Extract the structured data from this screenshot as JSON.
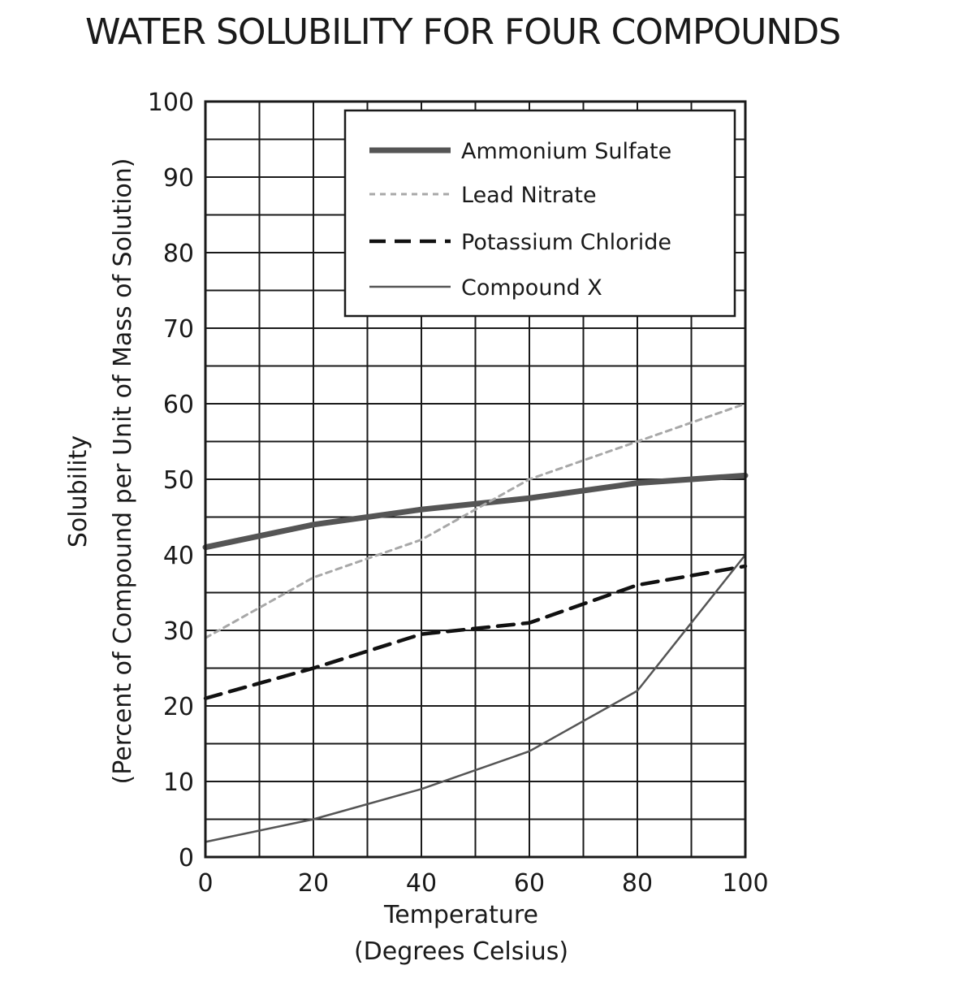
{
  "chart_data": {
    "type": "line",
    "title": "WATER SOLUBILITY FOR FOUR COMPOUNDS",
    "xlabel": [
      "Temperature",
      "(Degrees Celsius)"
    ],
    "ylabel": [
      "Solubility",
      "(Percent of Compound per Unit of Mass of Solution)"
    ],
    "xlim": [
      0,
      100
    ],
    "ylim": [
      0,
      100
    ],
    "x_ticks": [
      0,
      20,
      40,
      60,
      80,
      100
    ],
    "y_ticks": [
      0,
      10,
      20,
      30,
      40,
      50,
      60,
      70,
      80,
      90,
      100
    ],
    "grid": true,
    "legend_position": "top-right",
    "series": [
      {
        "name": "Ammonium Sulfate",
        "style": "thick-solid",
        "color": "#555555",
        "points": [
          [
            0,
            41
          ],
          [
            20,
            44
          ],
          [
            40,
            46
          ],
          [
            60,
            47.5
          ],
          [
            80,
            49.5
          ],
          [
            100,
            50.5
          ]
        ]
      },
      {
        "name": "Lead Nitrate",
        "style": "dotted",
        "color": "#a8a8a8",
        "points": [
          [
            0,
            29
          ],
          [
            20,
            37
          ],
          [
            40,
            42
          ],
          [
            60,
            50
          ],
          [
            80,
            55
          ],
          [
            100,
            60
          ]
        ]
      },
      {
        "name": "Potassium Chloride",
        "style": "dashed",
        "color": "#111111",
        "points": [
          [
            0,
            21
          ],
          [
            10,
            23
          ],
          [
            20,
            25
          ],
          [
            40,
            29.5
          ],
          [
            60,
            31
          ],
          [
            80,
            36
          ],
          [
            100,
            38.5
          ]
        ]
      },
      {
        "name": "Compound X",
        "style": "thin-solid",
        "color": "#555555",
        "points": [
          [
            0,
            2
          ],
          [
            20,
            5
          ],
          [
            40,
            9
          ],
          [
            60,
            14
          ],
          [
            80,
            22
          ],
          [
            90,
            31
          ],
          [
            100,
            40
          ]
        ]
      }
    ]
  }
}
